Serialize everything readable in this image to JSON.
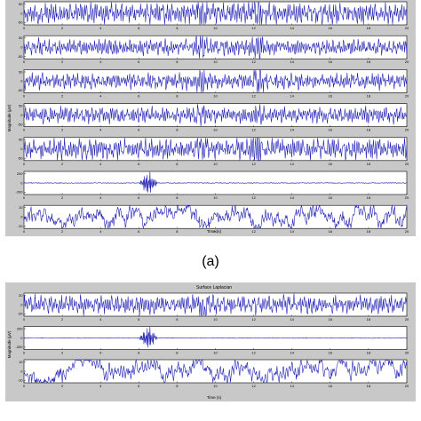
{
  "figures": [
    {
      "caption": "(a)",
      "title": "",
      "ylabel": "Magnitude (μV)",
      "xlabel": "Time (s)",
      "xticks": [
        "0",
        "2",
        "4",
        "6",
        "8",
        "10",
        "12",
        "14",
        "16",
        "18",
        "20"
      ]
    },
    {
      "caption": "",
      "title": "Surface Laplacian",
      "ylabel": "Magnitude (μV)",
      "xlabel": "Time (s)",
      "xticks": [
        "0",
        "2",
        "4",
        "6",
        "8",
        "10",
        "12",
        "14",
        "16",
        "18",
        "20"
      ]
    }
  ],
  "chart_data": [
    {
      "type": "line",
      "xlabel": "Time (s)",
      "ylabel": "Magnitude (μV)",
      "xlim": [
        0,
        20
      ],
      "x_ticks": [
        0,
        2,
        4,
        6,
        8,
        10,
        12,
        14,
        16,
        18,
        20
      ],
      "grid": false,
      "series": [
        {
          "ylim": [
            -50,
            50
          ],
          "y_ticks": [
            "-50",
            "0",
            "50"
          ],
          "pattern": "eeg",
          "amplitude": 0.45,
          "burst_times": [
            9.3,
            12.2
          ]
        },
        {
          "ylim": [
            -50,
            50
          ],
          "y_ticks": [
            "-50",
            "0",
            "50"
          ],
          "pattern": "eeg",
          "amplitude": 0.35,
          "burst_times": [
            9.3,
            12.2
          ]
        },
        {
          "ylim": [
            -50,
            50
          ],
          "y_ticks": [
            "-50",
            "0",
            "50"
          ],
          "pattern": "eeg",
          "amplitude": 0.35,
          "burst_times": [
            9.3,
            12.2
          ]
        },
        {
          "ylim": [
            -50,
            50
          ],
          "y_ticks": [
            "-50",
            "0",
            "50"
          ],
          "pattern": "eeg",
          "amplitude": 0.35,
          "burst_times": [
            9.3,
            12.2
          ]
        },
        {
          "ylim": [
            -50,
            50
          ],
          "y_ticks": [
            "-50",
            "0",
            "50"
          ],
          "pattern": "eeg",
          "amplitude": 0.45,
          "burst_times": [
            9.3,
            12.2
          ]
        },
        {
          "ylim": [
            -200,
            200
          ],
          "y_ticks": [
            "-200",
            "0",
            "200"
          ],
          "pattern": "spike",
          "amplitude": 0.45,
          "burst_times": [
            6.5
          ]
        },
        {
          "ylim": [
            -10,
            10
          ],
          "y_ticks": [
            "-10",
            "0",
            "10"
          ],
          "pattern": "noise",
          "amplitude": 0.55,
          "burst_times": []
        }
      ]
    },
    {
      "type": "line",
      "title": "Surface Laplacian",
      "xlabel": "Time (s)",
      "ylabel": "Magnitude (μV)",
      "xlim": [
        0,
        20
      ],
      "x_ticks": [
        0,
        2,
        4,
        6,
        8,
        10,
        12,
        14,
        16,
        18,
        20
      ],
      "grid": false,
      "series": [
        {
          "ylim": [
            -20,
            20
          ],
          "y_ticks": [
            "-20",
            "0",
            "20"
          ],
          "pattern": "eeg",
          "amplitude": 0.4,
          "burst_times": [
            9.3
          ]
        },
        {
          "ylim": [
            -200,
            200
          ],
          "y_ticks": [
            "-200",
            "0",
            "200"
          ],
          "pattern": "spike",
          "amplitude": 0.45,
          "burst_times": [
            6.5
          ]
        },
        {
          "ylim": [
            -10,
            10
          ],
          "y_ticks": [
            "-10",
            "0",
            "10"
          ],
          "pattern": "noise",
          "amplitude": 0.55,
          "burst_times": []
        }
      ]
    }
  ],
  "colors": {
    "trace": "#1f1fb4",
    "panel_background": "#c8c8c8",
    "axes_background": "#ffffff"
  }
}
